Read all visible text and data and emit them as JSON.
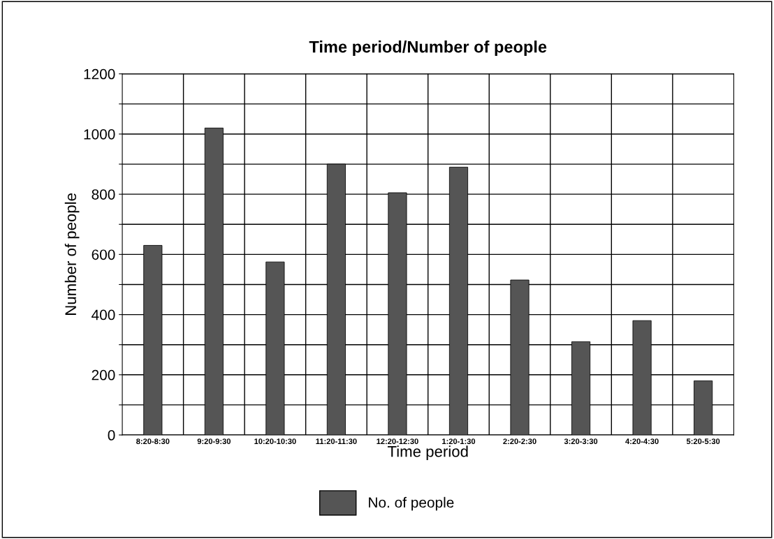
{
  "chart_data": {
    "type": "bar",
    "title": "Time period/Number of people",
    "xlabel": "Time period",
    "ylabel": "Number of people",
    "categories": [
      "8:20-8:30",
      "9:20-9:30",
      "10:20-10:30",
      "11:20-11:30",
      "12:20-12:30",
      "1:20-1:30",
      "2:20-2:30",
      "3:20-3:30",
      "4:20-4:30",
      "5:20-5:30"
    ],
    "series": [
      {
        "name": "No. of people",
        "color": "#555555",
        "values": [
          630,
          1020,
          575,
          900,
          805,
          890,
          515,
          310,
          380,
          180
        ]
      }
    ],
    "ylim": [
      0,
      1200
    ],
    "yticks": [
      0,
      {
        "value": 100,
        "label": null
      },
      200,
      {
        "value": 300,
        "label": null
      },
      400,
      {
        "value": 500,
        "label": null
      },
      600,
      {
        "value": 700,
        "label": null
      },
      800,
      {
        "value": 900,
        "label": null
      },
      1000,
      {
        "value": 1100,
        "label": null
      },
      1200
    ],
    "grid": true,
    "legend": "bottom"
  }
}
